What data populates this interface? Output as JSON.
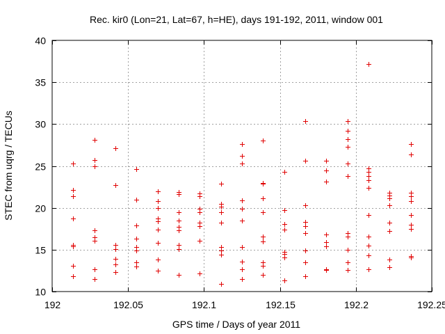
{
  "chart_data": {
    "type": "scatter",
    "title": "Rec. kir0 (Lon=21, Lat=67, h=HE), days 191-192, 2011, window 001",
    "xlabel": "GPS time / Days of year 2011",
    "ylabel": "STEC from uqrg / TECUs",
    "xlim": [
      192,
      192.25
    ],
    "ylim": [
      10,
      40
    ],
    "x_ticks": [
      192,
      192.05,
      192.1,
      192.15,
      192.2,
      192.25
    ],
    "x_tick_labels": [
      "192",
      "192.05",
      "192.1",
      "192.15",
      "192.2",
      "192.25"
    ],
    "y_ticks": [
      10,
      15,
      20,
      25,
      30,
      35,
      40
    ],
    "y_tick_labels": [
      "10",
      "15",
      "20",
      "25",
      "30",
      "35",
      "40"
    ],
    "grid": true,
    "legend": "none",
    "marker": "plus",
    "color": "#e00000",
    "points": [
      [
        192.0139,
        25.3
      ],
      [
        192.0139,
        22.1
      ],
      [
        192.0139,
        21.4
      ],
      [
        192.0139,
        18.7
      ],
      [
        192.0139,
        15.6
      ],
      [
        192.0139,
        15.4
      ],
      [
        192.0139,
        13.1
      ],
      [
        192.0139,
        11.8
      ],
      [
        192.0278,
        28.1
      ],
      [
        192.0278,
        25.7
      ],
      [
        192.0278,
        25.0
      ],
      [
        192.0278,
        17.3
      ],
      [
        192.0278,
        16.5
      ],
      [
        192.0278,
        16.1
      ],
      [
        192.0278,
        12.7
      ],
      [
        192.0278,
        11.5
      ],
      [
        192.0417,
        27.1
      ],
      [
        192.0417,
        22.7
      ],
      [
        192.0417,
        15.6
      ],
      [
        192.0417,
        15.1
      ],
      [
        192.0417,
        13.9
      ],
      [
        192.0417,
        13.2
      ],
      [
        192.0417,
        12.3
      ],
      [
        192.0556,
        24.6
      ],
      [
        192.0556,
        21.0
      ],
      [
        192.0556,
        17.9
      ],
      [
        192.0556,
        16.3
      ],
      [
        192.0556,
        15.3
      ],
      [
        192.0556,
        14.9
      ],
      [
        192.0556,
        13.5
      ],
      [
        192.0556,
        13.0
      ],
      [
        192.0694,
        22.0
      ],
      [
        192.0694,
        20.8
      ],
      [
        192.0694,
        20.0
      ],
      [
        192.0694,
        18.7
      ],
      [
        192.0694,
        18.4
      ],
      [
        192.0694,
        17.4
      ],
      [
        192.0694,
        15.8
      ],
      [
        192.0694,
        13.8
      ],
      [
        192.0694,
        12.5
      ],
      [
        192.0833,
        21.9
      ],
      [
        192.0833,
        21.6
      ],
      [
        192.0833,
        19.5
      ],
      [
        192.0833,
        18.5
      ],
      [
        192.0833,
        17.7
      ],
      [
        192.0833,
        17.3
      ],
      [
        192.0833,
        15.6
      ],
      [
        192.0833,
        15.1
      ],
      [
        192.0833,
        12.0
      ],
      [
        192.0972,
        21.7
      ],
      [
        192.0972,
        21.4
      ],
      [
        192.0972,
        19.9
      ],
      [
        192.0972,
        19.5
      ],
      [
        192.0972,
        18.2
      ],
      [
        192.0972,
        17.8
      ],
      [
        192.0972,
        16.1
      ],
      [
        192.0972,
        12.2
      ],
      [
        192.1111,
        22.9
      ],
      [
        192.1111,
        20.5
      ],
      [
        192.1111,
        20.1
      ],
      [
        192.1111,
        19.5
      ],
      [
        192.1111,
        18.2
      ],
      [
        192.1111,
        15.3
      ],
      [
        192.1111,
        14.9
      ],
      [
        192.1111,
        14.4
      ],
      [
        192.1111,
        10.9
      ],
      [
        192.125,
        27.6
      ],
      [
        192.125,
        26.2
      ],
      [
        192.125,
        25.3
      ],
      [
        192.125,
        20.9
      ],
      [
        192.125,
        19.9
      ],
      [
        192.125,
        18.5
      ],
      [
        192.125,
        15.3
      ],
      [
        192.125,
        13.6
      ],
      [
        192.125,
        12.7
      ],
      [
        192.125,
        11.5
      ],
      [
        192.1389,
        28.0
      ],
      [
        192.1389,
        23.0
      ],
      [
        192.1389,
        22.9
      ],
      [
        192.1389,
        21.1
      ],
      [
        192.1389,
        19.5
      ],
      [
        192.1389,
        16.6
      ],
      [
        192.1389,
        16.0
      ],
      [
        192.1389,
        13.5
      ],
      [
        192.1389,
        13.1
      ],
      [
        192.1389,
        12.0
      ],
      [
        192.1528,
        24.3
      ],
      [
        192.1528,
        19.7
      ],
      [
        192.1528,
        18.1
      ],
      [
        192.1528,
        17.4
      ],
      [
        192.1528,
        14.7
      ],
      [
        192.1528,
        14.5
      ],
      [
        192.1528,
        14.1
      ],
      [
        192.1528,
        11.3
      ],
      [
        192.1667,
        30.4
      ],
      [
        192.1667,
        25.6
      ],
      [
        192.1667,
        20.3
      ],
      [
        192.1667,
        18.3
      ],
      [
        192.1667,
        17.8
      ],
      [
        192.1667,
        17.0
      ],
      [
        192.1667,
        14.9
      ],
      [
        192.1667,
        13.5
      ],
      [
        192.1667,
        11.8
      ],
      [
        192.1806,
        25.6
      ],
      [
        192.1806,
        24.5
      ],
      [
        192.1806,
        23.1
      ],
      [
        192.1806,
        16.8
      ],
      [
        192.1806,
        15.9
      ],
      [
        192.1806,
        15.4
      ],
      [
        192.1806,
        12.7
      ],
      [
        192.1806,
        12.6
      ],
      [
        192.1944,
        30.4
      ],
      [
        192.1944,
        29.2
      ],
      [
        192.1944,
        28.2
      ],
      [
        192.1944,
        27.3
      ],
      [
        192.1944,
        25.3
      ],
      [
        192.1944,
        23.8
      ],
      [
        192.1944,
        17.0
      ],
      [
        192.1944,
        16.6
      ],
      [
        192.1944,
        15.0
      ],
      [
        192.1944,
        13.5
      ],
      [
        192.1944,
        12.6
      ],
      [
        192.2083,
        37.2
      ],
      [
        192.2083,
        24.7
      ],
      [
        192.2083,
        24.3
      ],
      [
        192.2083,
        23.8
      ],
      [
        192.2083,
        23.3
      ],
      [
        192.2083,
        22.4
      ],
      [
        192.2083,
        19.1
      ],
      [
        192.2083,
        16.6
      ],
      [
        192.2083,
        15.5
      ],
      [
        192.2083,
        14.3
      ],
      [
        192.2083,
        12.7
      ],
      [
        192.2222,
        21.8
      ],
      [
        192.2222,
        21.5
      ],
      [
        192.2222,
        21.1
      ],
      [
        192.2222,
        20.3
      ],
      [
        192.2222,
        18.2
      ],
      [
        192.2222,
        17.2
      ],
      [
        192.2222,
        13.8
      ],
      [
        192.2222,
        12.9
      ],
      [
        192.2361,
        27.6
      ],
      [
        192.2361,
        26.4
      ],
      [
        192.2361,
        21.8
      ],
      [
        192.2361,
        21.4
      ],
      [
        192.2361,
        20.8
      ],
      [
        192.2361,
        19.1
      ],
      [
        192.2361,
        18.0
      ],
      [
        192.2361,
        17.5
      ],
      [
        192.2361,
        14.2
      ],
      [
        192.2361,
        14.1
      ]
    ]
  }
}
